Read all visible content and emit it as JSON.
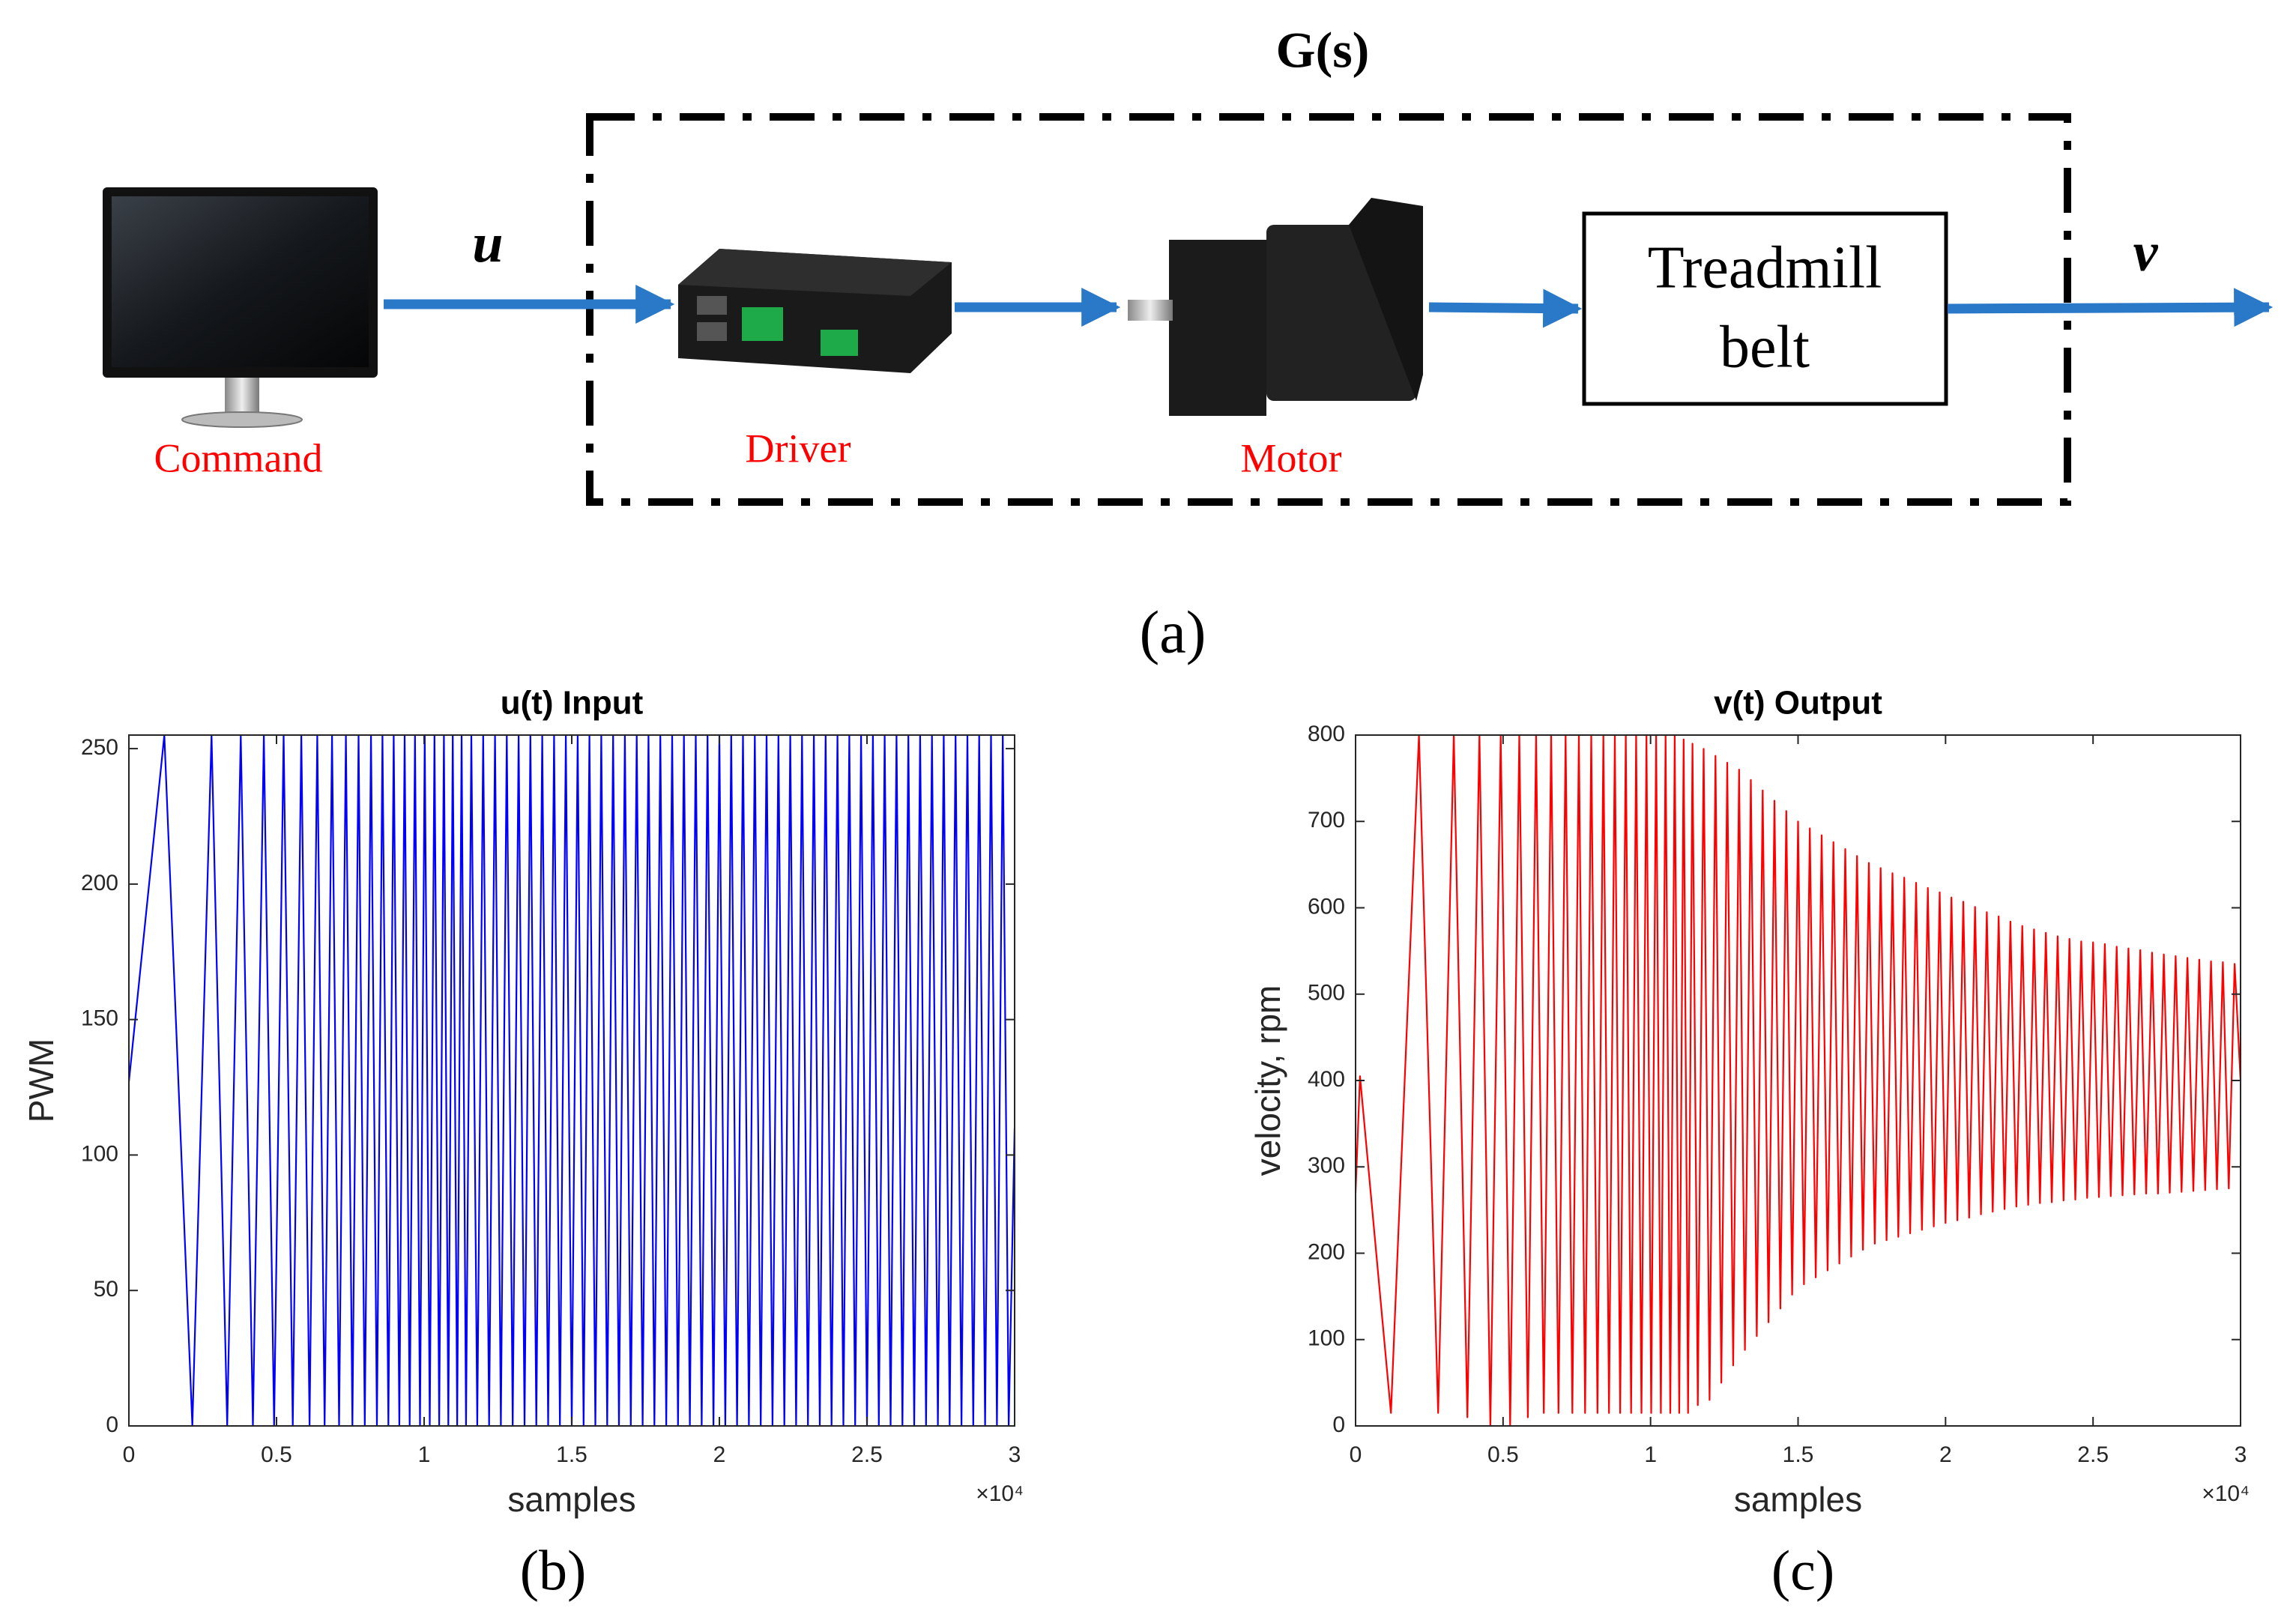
{
  "diagram": {
    "title": "G(s)",
    "input_label": "u",
    "output_label": "v",
    "command_label": "Command",
    "driver_label": "Driver",
    "motor_label": "Motor",
    "plant_label": [
      "Treadmill",
      "belt"
    ],
    "caption": "(a)"
  },
  "chart_data": [
    {
      "type": "line",
      "title": "u(t) Input",
      "xlabel": "samples",
      "ylabel": "PWM",
      "x_multiplier": "×10⁴",
      "caption": "(b)",
      "color": "#0000ff",
      "xlim": [
        0,
        30000
      ],
      "ylim": [
        0,
        255
      ],
      "xticks": [
        0,
        {
          "value": 5000,
          "label": "0.5"
        },
        {
          "value": 10000,
          "label": "1"
        },
        {
          "value": 15000,
          "label": "1.5"
        },
        {
          "value": 20000,
          "label": "2"
        },
        {
          "value": 25000,
          "label": "2.5"
        },
        {
          "value": 30000,
          "label": "3"
        }
      ],
      "yticks": [
        0,
        50,
        100,
        150,
        200,
        250
      ],
      "x": [
        0,
        1200,
        2150,
        2800,
        3330,
        3790,
        4200,
        4570,
        4920,
        5240,
        5550,
        5840,
        6120,
        6380,
        6630,
        6880,
        7120,
        7350,
        7570,
        7780,
        7990,
        8200,
        8400,
        8590,
        8790,
        8970,
        9160,
        9340,
        9510,
        9690,
        9860,
        10020,
        10190,
        10350,
        10510,
        10670,
        10820,
        10970,
        11120,
        11270,
        11420,
        11600,
        11800,
        12000,
        12200,
        12400,
        12600,
        12800,
        13000,
        13200,
        13400,
        13600,
        13800,
        14000,
        14200,
        14400,
        14600,
        14800,
        15000,
        15200,
        15400,
        15600,
        15800,
        16000,
        16200,
        16400,
        16600,
        16800,
        17000,
        17200,
        17400,
        17600,
        17800,
        18000,
        18200,
        18400,
        18600,
        18800,
        19000,
        19200,
        19400,
        19600,
        19800,
        20000,
        20200,
        20400,
        20600,
        20800,
        21000,
        21200,
        21400,
        21600,
        21800,
        22000,
        22200,
        22400,
        22600,
        22800,
        23000,
        23200,
        23400,
        23600,
        23800,
        24000,
        24200,
        24400,
        24600,
        24800,
        25000,
        25200,
        25400,
        25600,
        25800,
        26000,
        26200,
        26400,
        26600,
        26800,
        27000,
        27200,
        27400,
        27600,
        27800,
        28000,
        28200,
        28400,
        28600,
        28800,
        29000,
        29200,
        29400,
        29600,
        29800,
        30000
      ],
      "values": [
        127,
        255,
        0,
        255,
        0,
        255,
        0,
        255,
        0,
        255,
        0,
        255,
        0,
        255,
        0,
        255,
        0,
        255,
        0,
        255,
        0,
        255,
        0,
        255,
        0,
        255,
        0,
        255,
        0,
        255,
        0,
        255,
        0,
        255,
        0,
        255,
        0,
        255,
        0,
        255,
        0,
        255,
        0,
        255,
        0,
        255,
        0,
        255,
        0,
        255,
        0,
        255,
        0,
        255,
        0,
        255,
        0,
        255,
        0,
        255,
        0,
        255,
        0,
        255,
        0,
        255,
        0,
        255,
        0,
        255,
        0,
        255,
        0,
        255,
        0,
        255,
        0,
        255,
        0,
        255,
        0,
        255,
        0,
        255,
        0,
        255,
        0,
        255,
        0,
        255,
        0,
        255,
        0,
        255,
        0,
        255,
        0,
        255,
        0,
        255,
        0,
        255,
        0,
        255,
        0,
        255,
        0,
        255,
        0,
        255,
        0,
        255,
        0,
        255,
        0,
        255,
        0,
        255,
        0,
        255,
        0,
        255,
        0,
        255,
        0,
        255,
        0,
        255,
        0,
        255,
        0,
        255,
        0,
        110
      ]
    },
    {
      "type": "line",
      "title": "v(t) Output",
      "xlabel": "samples",
      "ylabel": "velocity, rpm",
      "x_multiplier": "×10⁴",
      "caption": "(c)",
      "color": "#ff0000",
      "xlim": [
        0,
        30000
      ],
      "ylim": [
        0,
        800
      ],
      "xticks": [
        0,
        {
          "value": 5000,
          "label": "0.5"
        },
        {
          "value": 10000,
          "label": "1"
        },
        {
          "value": 15000,
          "label": "1.5"
        },
        {
          "value": 20000,
          "label": "2"
        },
        {
          "value": 25000,
          "label": "2.5"
        },
        {
          "value": 30000,
          "label": "3"
        }
      ],
      "yticks": [
        0,
        100,
        200,
        300,
        400,
        500,
        600,
        700,
        800
      ],
      "x": [
        0,
        150,
        1200,
        2150,
        2800,
        3330,
        3790,
        4200,
        4570,
        4920,
        5240,
        5550,
        5840,
        6120,
        6380,
        6630,
        6880,
        7120,
        7350,
        7570,
        7780,
        7990,
        8200,
        8400,
        8590,
        8790,
        8970,
        9160,
        9340,
        9510,
        9690,
        9860,
        10020,
        10190,
        10350,
        10510,
        10670,
        10820,
        10970,
        11120,
        11270,
        11420,
        11600,
        11800,
        12000,
        12200,
        12400,
        12600,
        12800,
        13000,
        13200,
        13400,
        13600,
        13800,
        14000,
        14200,
        14400,
        14600,
        14800,
        15000,
        15200,
        15400,
        15600,
        15800,
        16000,
        16200,
        16400,
        16600,
        16800,
        17000,
        17200,
        17400,
        17600,
        17800,
        18000,
        18200,
        18400,
        18600,
        18800,
        19000,
        19200,
        19400,
        19600,
        19800,
        20000,
        20200,
        20400,
        20600,
        20800,
        21000,
        21200,
        21400,
        21600,
        21800,
        22000,
        22200,
        22400,
        22600,
        22800,
        23000,
        23200,
        23400,
        23600,
        23800,
        24000,
        24200,
        24400,
        24600,
        24800,
        25000,
        25200,
        25400,
        25600,
        25800,
        26000,
        26200,
        26400,
        26600,
        26800,
        27000,
        27200,
        27400,
        27600,
        27800,
        28000,
        28200,
        28400,
        28600,
        28800,
        29000,
        29200,
        29400,
        29600,
        29800,
        30000
      ],
      "values": [
        270,
        405,
        15,
        800,
        15,
        800,
        10,
        800,
        0,
        800,
        0,
        800,
        10,
        800,
        15,
        800,
        15,
        800,
        15,
        800,
        15,
        800,
        15,
        800,
        15,
        800,
        15,
        800,
        15,
        800,
        15,
        800,
        15,
        800,
        15,
        800,
        15,
        800,
        15,
        795,
        15,
        790,
        24,
        784,
        30,
        776,
        50,
        768,
        70,
        760,
        88,
        748,
        104,
        736,
        120,
        724,
        136,
        712,
        152,
        700,
        164,
        692,
        172,
        684,
        180,
        676,
        188,
        668,
        196,
        660,
        204,
        652,
        211,
        646,
        215,
        640,
        219,
        635,
        223,
        629,
        227,
        623,
        231,
        618,
        235,
        612,
        238,
        607,
        241,
        601,
        245,
        595,
        248,
        590,
        251,
        584,
        254,
        579,
        256,
        575,
        258,
        571,
        259,
        567,
        261,
        564,
        262,
        561,
        264,
        560,
        265,
        558,
        266,
        555,
        267,
        553,
        268,
        551,
        269,
        548,
        269,
        546,
        270,
        544,
        271,
        542,
        272,
        540,
        273,
        538,
        274,
        537,
        275,
        535,
        400
      ]
    }
  ]
}
